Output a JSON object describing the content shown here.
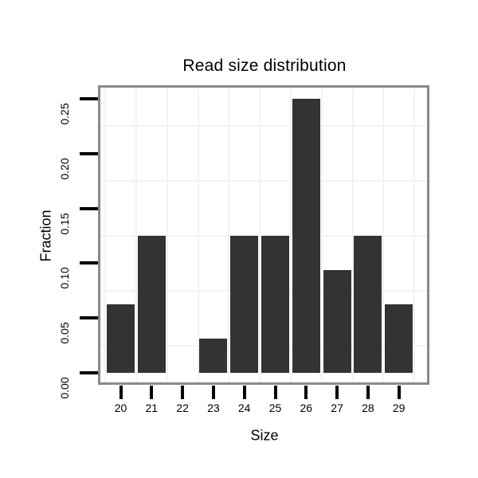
{
  "page": {
    "background": "#ffffff"
  },
  "chart_data": {
    "type": "bar",
    "title": "Read size distribution",
    "xlabel": "Size",
    "ylabel": "Fraction",
    "categories": [
      "20",
      "21",
      "22",
      "23",
      "24",
      "25",
      "26",
      "27",
      "28",
      "29"
    ],
    "values": [
      0.0625,
      0.125,
      0,
      0.03125,
      0.125,
      0.125,
      0.25,
      0.09375,
      0.125,
      0.0625
    ],
    "y_ticks": [
      0,
      0.05,
      0.1,
      0.15,
      0.2,
      0.25
    ],
    "y_tick_labels": [
      "0.00",
      "0.05",
      "0.10",
      "0.15",
      "0.20",
      "0.25"
    ],
    "ylim": [
      -0.0125,
      0.2625
    ],
    "xlim": [
      19.05,
      29.95
    ],
    "legend": "none",
    "grid": "minor-gridlines-only",
    "bar_width_fraction": 0.9,
    "colors": {
      "bar_fill": "#333333",
      "panel_border": "#898989",
      "gridline": "#f2f2f2",
      "tick": "#000000",
      "text": "#000000",
      "panel_background": "#ffffff"
    }
  }
}
